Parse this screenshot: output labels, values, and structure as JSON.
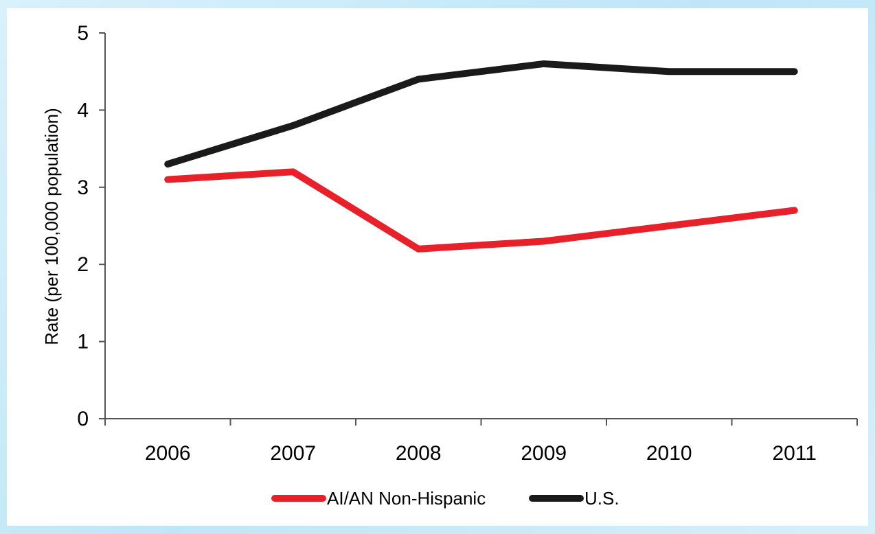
{
  "chart_data": {
    "type": "line",
    "title": "",
    "xlabel": "",
    "ylabel": "Rate (per 100,000 population)",
    "categories": [
      "2006",
      "2007",
      "2008",
      "2009",
      "2010",
      "2011"
    ],
    "ylim": [
      0,
      5
    ],
    "yticks": [
      "0",
      "1",
      "2",
      "3",
      "4",
      "5"
    ],
    "grid": false,
    "legend_position": "bottom",
    "series": [
      {
        "name": "AI/AN Non-Hispanic",
        "color": "#e8202a",
        "values": [
          3.1,
          3.2,
          2.2,
          2.3,
          2.5,
          2.7
        ]
      },
      {
        "name": "U.S.",
        "color": "#1a1a1a",
        "values": [
          3.3,
          3.8,
          4.4,
          4.6,
          4.5,
          4.5
        ]
      }
    ]
  }
}
